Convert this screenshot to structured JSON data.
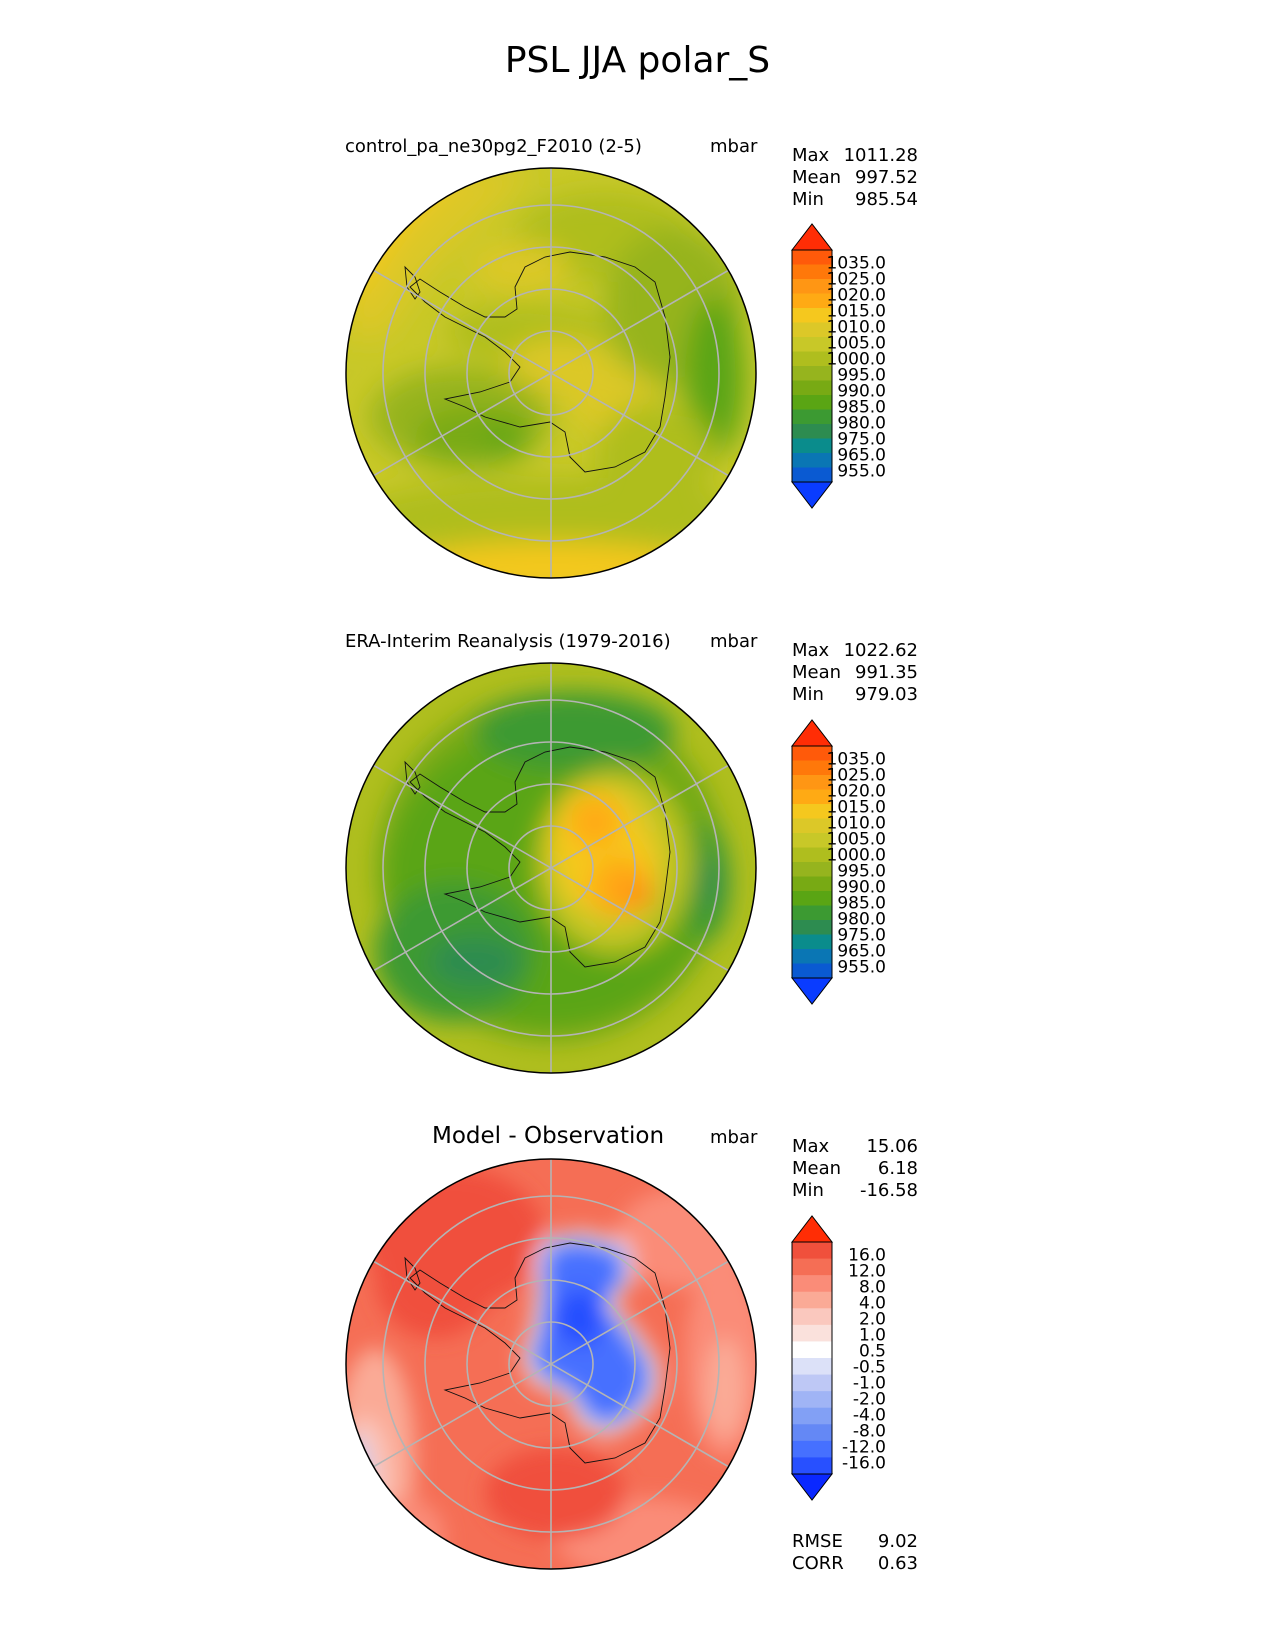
{
  "title": "PSL JJA polar_S",
  "panels": [
    {
      "id": "test",
      "label": "control_pa_ne30pg2_F2010 (2-5)",
      "units": "mbar",
      "stats": [
        {
          "name": "Max",
          "value": "1011.28"
        },
        {
          "name": "Mean",
          "value": "997.52"
        },
        {
          "name": "Min",
          "value": "985.54"
        }
      ]
    },
    {
      "id": "ref",
      "label": "ERA-Interim Reanalysis (1979-2016)",
      "units": "mbar",
      "stats": [
        {
          "name": "Max",
          "value": "1022.62"
        },
        {
          "name": "Mean",
          "value": "991.35"
        },
        {
          "name": "Min",
          "value": "979.03"
        }
      ]
    },
    {
      "id": "diff",
      "label": "Model - Observation",
      "units": "mbar",
      "stats": [
        {
          "name": "Max",
          "value": "15.06"
        },
        {
          "name": "Mean",
          "value": "6.18"
        },
        {
          "name": "Min",
          "value": "-16.58"
        }
      ],
      "extra_stats": [
        {
          "name": "RMSE",
          "value": "9.02"
        },
        {
          "name": "CORR",
          "value": "0.63"
        }
      ]
    }
  ],
  "colorbar_abs": {
    "colors": [
      "#0a3cff",
      "#0a5ad2",
      "#0a76b4",
      "#0a8c8c",
      "#2d8c50",
      "#3c9a32",
      "#5aa514",
      "#78aa14",
      "#96b41e",
      "#afbe1e",
      "#c8c828",
      "#dcc828",
      "#f5c81e",
      "#ffaa14",
      "#ff9614",
      "#ff780a",
      "#ff5a0a",
      "#ff2d05"
    ],
    "ticks": [
      "1035.0",
      "1025.0",
      "1020.0",
      "1015.0",
      "1010.0",
      "1005.0",
      "1000.0",
      "995.0",
      "990.0",
      "985.0",
      "980.0",
      "975.0",
      "965.0",
      "955.0"
    ]
  },
  "colorbar_diff": {
    "colors": [
      "#0a28ff",
      "#2850ff",
      "#4670ff",
      "#6488f5",
      "#82a0f5",
      "#a0b4f5",
      "#bec8f5",
      "#dce1f8",
      "#ffffff",
      "#fae1dc",
      "#fac8be",
      "#faaa96",
      "#fa8c78",
      "#f56e55",
      "#f0503c",
      "#ff2d05"
    ],
    "ticks": [
      "16.0",
      "12.0",
      "8.0",
      "4.0",
      "2.0",
      "1.0",
      "0.5",
      "-0.5",
      "-1.0",
      "-2.0",
      "-4.0",
      "-8.0",
      "-12.0",
      "-16.0"
    ]
  }
}
